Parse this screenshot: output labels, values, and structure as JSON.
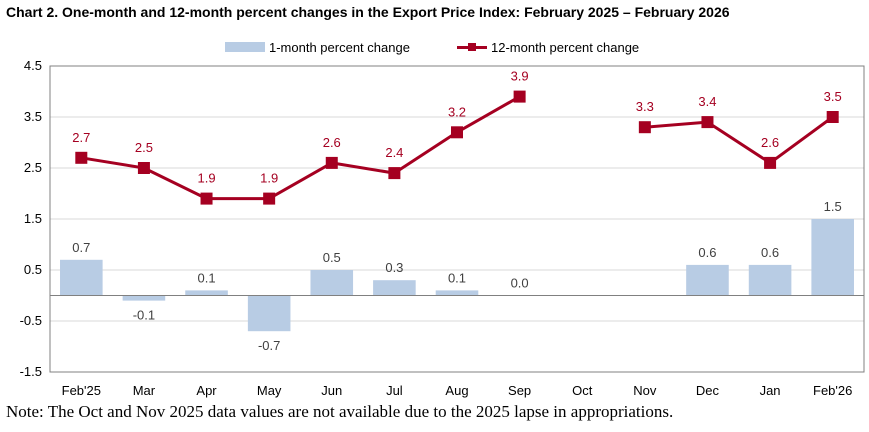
{
  "chart_data": {
    "type": "bar+line",
    "title": "Chart 2. One-month and 12-month percent changes in the Export Price Index: February 2025 – February 2026",
    "categories": [
      "Feb'25",
      "Mar",
      "Apr",
      "May",
      "Jun",
      "Jul",
      "Aug",
      "Sep",
      "Oct",
      "Nov",
      "Dec",
      "Jan",
      "Feb'26"
    ],
    "series": [
      {
        "name": "1-month percent change",
        "type": "bar",
        "color": "#b8cce4",
        "values": [
          0.7,
          -0.1,
          0.1,
          -0.7,
          0.5,
          0.3,
          0.1,
          0.0,
          null,
          null,
          0.6,
          0.6,
          1.5
        ],
        "labels": [
          "0.7",
          "-0.1",
          "0.1",
          "-0.7",
          "0.5",
          "0.3",
          "0.1",
          "0.0",
          null,
          null,
          "0.6",
          "0.6",
          "1.5"
        ]
      },
      {
        "name": "12-month percent change",
        "type": "line",
        "color": "#a50021",
        "values": [
          2.7,
          2.5,
          1.9,
          1.9,
          2.6,
          2.4,
          3.2,
          3.9,
          null,
          3.3,
          3.4,
          2.6,
          3.5
        ],
        "labels": [
          "2.7",
          "2.5",
          "1.9",
          "1.9",
          "2.6",
          "2.4",
          "3.2",
          "3.9",
          null,
          "3.3",
          "3.4",
          "2.6",
          "3.5"
        ]
      }
    ],
    "ylim": [
      -1.5,
      4.5
    ],
    "yticks": [
      -1.5,
      -0.5,
      0.5,
      1.5,
      2.5,
      3.5,
      4.5
    ],
    "ytick_labels": [
      "-1.5",
      "-0.5",
      "0.5",
      "1.5",
      "2.5",
      "3.5",
      "4.5"
    ],
    "grid": true,
    "legend_position": "top"
  },
  "note": "Note: The Oct and Nov 2025 data values are not available due to the 2025 lapse in appropriations."
}
